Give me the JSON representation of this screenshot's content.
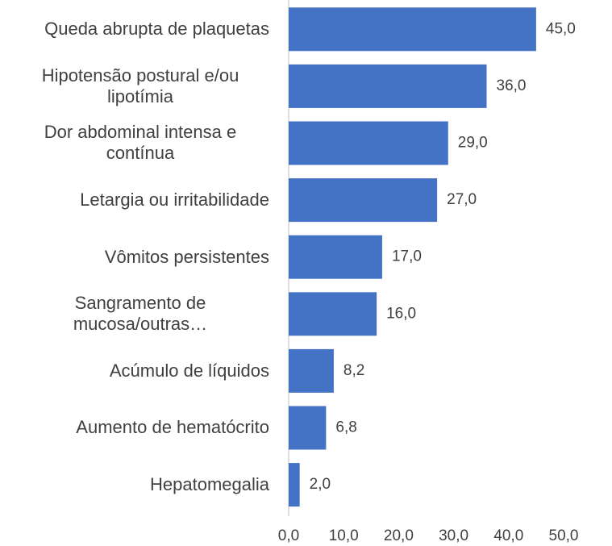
{
  "chart_data": {
    "type": "bar",
    "orientation": "horizontal",
    "categories": [
      "Queda abrupta de plaquetas",
      "Hipotensão postural e/ou lipotímia",
      "Dor abdominal intensa e contínua",
      "Letargia ou irritabilidade",
      "Vômitos persistentes",
      "Sangramento de mucosa/outras…",
      "Acúmulo de líquidos",
      "Aumento de hematócrito",
      "Hepatomegalia"
    ],
    "values": [
      45.0,
      36.0,
      29.0,
      27.0,
      17.0,
      16.0,
      8.2,
      6.8,
      2.0
    ],
    "value_labels": [
      "45,0",
      "36,0",
      "29,0",
      "27,0",
      "17,0",
      "16,0",
      "8,2",
      "6,8",
      "2,0"
    ],
    "color": "#4472c4",
    "xlim": [
      0,
      50
    ],
    "xticks": [
      {
        "value": 0,
        "label": "0,0"
      },
      {
        "value": 10,
        "label": "10,0"
      },
      {
        "value": 20,
        "label": "20,0"
      },
      {
        "value": 30,
        "label": "30,0"
      },
      {
        "value": 40,
        "label": "40,0"
      },
      {
        "value": 50,
        "label": "50,0"
      }
    ]
  }
}
